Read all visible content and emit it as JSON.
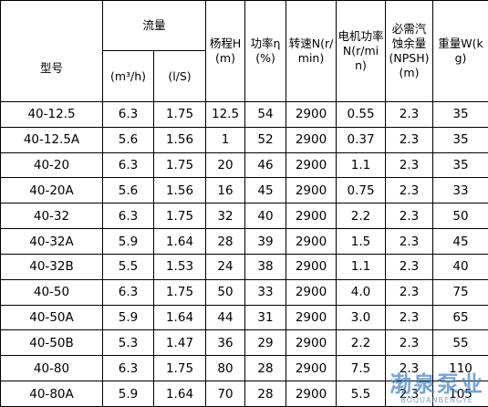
{
  "table": {
    "header": {
      "model": "型号",
      "flow": "流量",
      "flow_m3h": "(m³/h)",
      "flow_ls": "(l/S)",
      "head": "杨程H(m)",
      "efficiency": "功率η(%)",
      "speed": "转速N(r/min)",
      "motor_power": "电机功率N(r/min)",
      "npsh": "必需汽蚀余量(NPSH)(m)",
      "weight": "重量W(kg)"
    },
    "rows": [
      [
        "40-12.5",
        "6.3",
        "1.75",
        "12.5",
        "54",
        "2900",
        "0.55",
        "2.3",
        "35"
      ],
      [
        "40-12.5A",
        "5.6",
        "1.56",
        "1",
        "52",
        "2900",
        "0.37",
        "2.3",
        "35"
      ],
      [
        "40-20",
        "6.3",
        "1.75",
        "20",
        "46",
        "2900",
        "1.1",
        "2.3",
        "35"
      ],
      [
        "40-20A",
        "5.6",
        "1.56",
        "16",
        "45",
        "2900",
        "0.75",
        "2.3",
        "33"
      ],
      [
        "40-32",
        "6.3",
        "1.75",
        "32",
        "40",
        "2900",
        "2.2",
        "2.3",
        "50"
      ],
      [
        "40-32A",
        "5.9",
        "1.64",
        "28",
        "39",
        "2900",
        "1.5",
        "2.3",
        "45"
      ],
      [
        "40-32B",
        "5.5",
        "1.53",
        "24",
        "38",
        "2900",
        "1.1",
        "2.3",
        "40"
      ],
      [
        "40-50",
        "6.3",
        "1.75",
        "50",
        "33",
        "2900",
        "4.0",
        "2.3",
        "75"
      ],
      [
        "40-50A",
        "5.9",
        "1.64",
        "44",
        "31",
        "2900",
        "3.0",
        "2.3",
        "65"
      ],
      [
        "40-50B",
        "5.3",
        "1.47",
        "36",
        "29",
        "2900",
        "2.2",
        "2.3",
        "55"
      ],
      [
        "40-80",
        "6.3",
        "1.75",
        "80",
        "28",
        "2900",
        "7.5",
        "2.3",
        "110"
      ],
      [
        "40-80A",
        "5.9",
        "1.64",
        "70",
        "28",
        "2900",
        "5.5",
        "2.3",
        "105"
      ]
    ]
  },
  "watermark": {
    "brand": "渤泉泵业",
    "pinyin": "BOQUANBENGYE"
  }
}
